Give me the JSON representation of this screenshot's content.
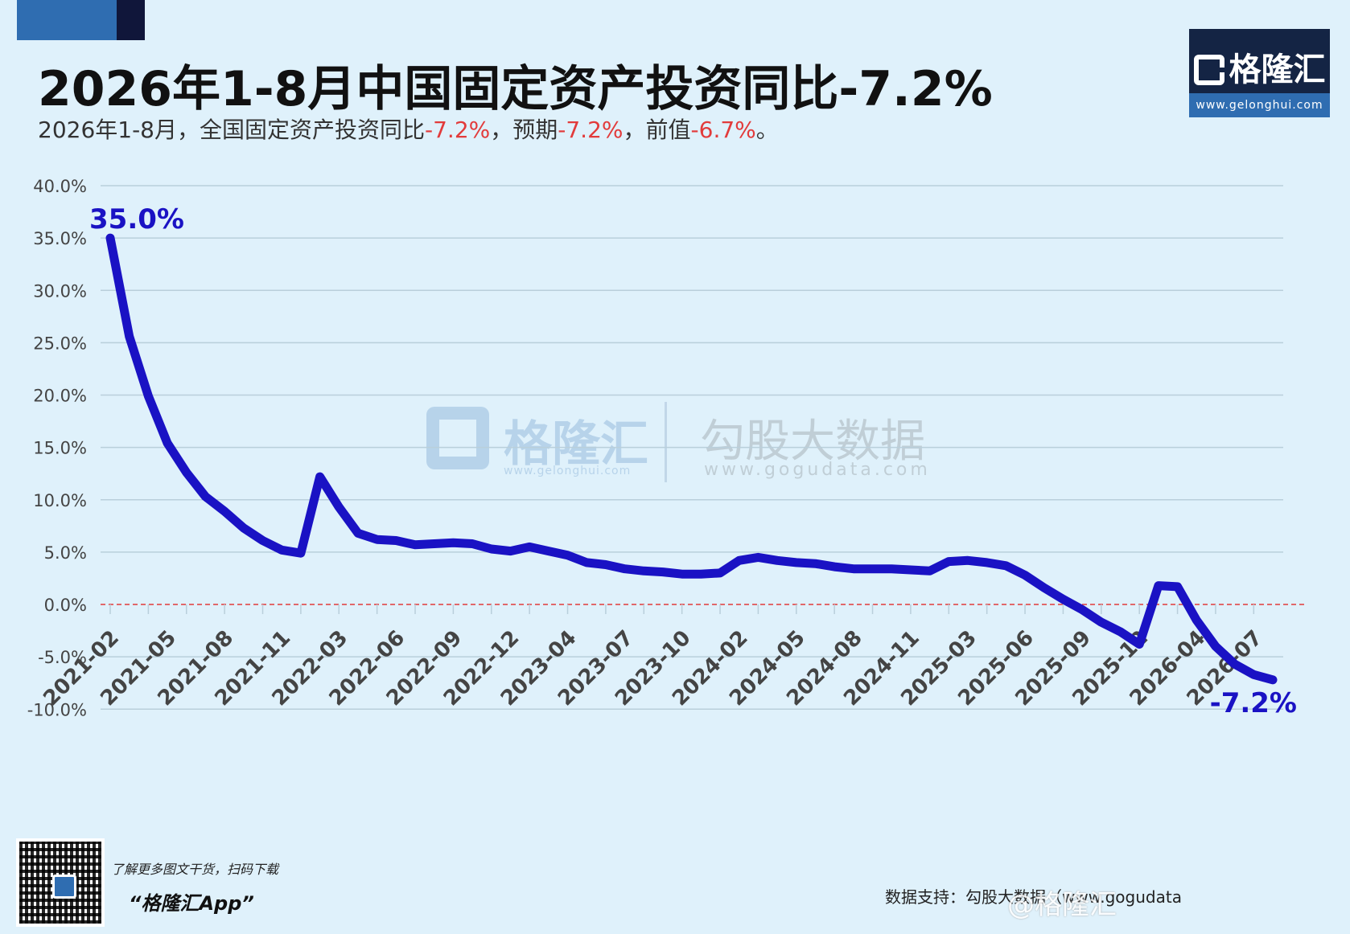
{
  "header": {
    "title": "2026年1-8月中国固定资产投资同比-7.2%",
    "subtitle_prefix": "2026年1-8月，全国固定资产投资同比",
    "subtitle_actual": "-7.2%",
    "subtitle_mid1": "，预期",
    "subtitle_expected": "-7.2%",
    "subtitle_mid2": "，前值",
    "subtitle_previous": "-6.7%",
    "subtitle_end": "。"
  },
  "logo": {
    "name": "格隆汇",
    "url": "www.gelonghui.com"
  },
  "watermark": {
    "name": "格隆汇",
    "url": "www.gelonghui.com",
    "name2": "勾股大数据",
    "url2": "www.gogudata.com"
  },
  "footer": {
    "promo_line1": "了解更多图文干货，扫码下载",
    "promo_line2": "“格隆汇App”",
    "source": "数据支持：勾股大数据（www.gogudata",
    "weibo": "@格隆汇"
  },
  "colors": {
    "line": "#1a12c4",
    "zero_line": "#e23b3b",
    "grid": "#b9cfdb",
    "negative_text": "#e23b3b"
  },
  "chart_data": {
    "type": "line",
    "ylim": [
      -10,
      40
    ],
    "yticks": [
      -10,
      -5,
      0,
      5,
      10,
      15,
      20,
      25,
      30,
      35,
      40
    ],
    "ytick_format": "%",
    "x_tick_labels": [
      "2021-02",
      "2021-05",
      "2021-08",
      "2021-11",
      "2022-03",
      "2022-06",
      "2022-09",
      "2022-12",
      "2023-04",
      "2023-07",
      "2023-10",
      "2024-02",
      "2024-05",
      "2024-08",
      "2024-11",
      "2025-03",
      "2025-06",
      "2025-09",
      "2025-12",
      "2026-04",
      "2026-07"
    ],
    "x": [
      "2021-02",
      "2021-03",
      "2021-04",
      "2021-05",
      "2021-06",
      "2021-07",
      "2021-08",
      "2021-09",
      "2021-10",
      "2021-11",
      "2021-12",
      "2022-02",
      "2022-03",
      "2022-04",
      "2022-05",
      "2022-06",
      "2022-07",
      "2022-08",
      "2022-09",
      "2022-10",
      "2022-11",
      "2022-12",
      "2023-02",
      "2023-03",
      "2023-04",
      "2023-05",
      "2023-06",
      "2023-07",
      "2023-08",
      "2023-09",
      "2023-10",
      "2023-11",
      "2023-12",
      "2024-02",
      "2024-03",
      "2024-04",
      "2024-05",
      "2024-06",
      "2024-07",
      "2024-08",
      "2024-09",
      "2024-10",
      "2024-11",
      "2024-12",
      "2025-02",
      "2025-03",
      "2025-04",
      "2025-05",
      "2025-06",
      "2025-07",
      "2025-08",
      "2025-09",
      "2025-10",
      "2025-11",
      "2025-12",
      "2026-02",
      "2026-03",
      "2026-04",
      "2026-05",
      "2026-06",
      "2026-07",
      "2026-08"
    ],
    "values": [
      35.0,
      25.6,
      19.9,
      15.4,
      12.6,
      10.3,
      8.9,
      7.3,
      6.1,
      5.2,
      4.9,
      12.2,
      9.3,
      6.8,
      6.2,
      6.1,
      5.7,
      5.8,
      5.9,
      5.8,
      5.3,
      5.1,
      5.5,
      5.1,
      4.7,
      4.0,
      3.8,
      3.4,
      3.2,
      3.1,
      2.9,
      2.9,
      3.0,
      4.2,
      4.5,
      4.2,
      4.0,
      3.9,
      3.6,
      3.4,
      3.4,
      3.4,
      3.3,
      3.2,
      4.1,
      4.2,
      4.0,
      3.7,
      2.8,
      1.6,
      0.5,
      -0.5,
      -1.7,
      -2.6,
      -3.8,
      1.8,
      1.7,
      -1.5,
      -4.0,
      -5.7,
      -6.7,
      -7.2
    ],
    "annotations": [
      {
        "index": 0,
        "text": "35.0%"
      },
      {
        "index": 61,
        "text": "-7.2%"
      }
    ],
    "reference_line": 0,
    "grid": true
  }
}
